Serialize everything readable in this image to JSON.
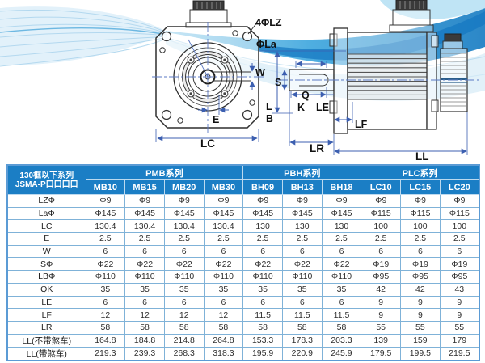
{
  "diagram": {
    "front": {
      "lz": "4ΦLZ",
      "la": "ΦLa",
      "w": "W",
      "e": "E",
      "lc": "LC"
    },
    "side": {
      "s": "S",
      "q": "Q",
      "k": "K",
      "le": "LE",
      "l": "L",
      "b": "B",
      "lf": "LF",
      "lr": "LR",
      "ll": "LL"
    }
  },
  "table": {
    "corner": {
      "line1": "130框以下系列",
      "line2": "JSMA-P口口口口"
    },
    "groups": [
      {
        "label": "PMB系列",
        "models": [
          "MB10",
          "MB15",
          "MB20",
          "MB30"
        ]
      },
      {
        "label": "PBH系列",
        "models": [
          "BH09",
          "BH13",
          "BH18"
        ]
      },
      {
        "label": "PLC系列",
        "models": [
          "LC10",
          "LC15",
          "LC20"
        ]
      }
    ],
    "rows": [
      {
        "label": "LZΦ",
        "values": [
          "Φ9",
          "Φ9",
          "Φ9",
          "Φ9",
          "Φ9",
          "Φ9",
          "Φ9",
          "Φ9",
          "Φ9",
          "Φ9"
        ]
      },
      {
        "label": "LaΦ",
        "values": [
          "Φ145",
          "Φ145",
          "Φ145",
          "Φ145",
          "Φ145",
          "Φ145",
          "Φ145",
          "Φ115",
          "Φ115",
          "Φ115"
        ]
      },
      {
        "label": "LC",
        "values": [
          "130.4",
          "130.4",
          "130.4",
          "130.4",
          "130",
          "130",
          "130",
          "100",
          "100",
          "100"
        ]
      },
      {
        "label": "E",
        "values": [
          "2.5",
          "2.5",
          "2.5",
          "2.5",
          "2.5",
          "2.5",
          "2.5",
          "2.5",
          "2.5",
          "2.5"
        ]
      },
      {
        "label": "W",
        "values": [
          "6",
          "6",
          "6",
          "6",
          "6",
          "6",
          "6",
          "6",
          "6",
          "6"
        ]
      },
      {
        "label": "SΦ",
        "values": [
          "Φ22",
          "Φ22",
          "Φ22",
          "Φ22",
          "Φ22",
          "Φ22",
          "Φ22",
          "Φ19",
          "Φ19",
          "Φ19"
        ]
      },
      {
        "label": "LBΦ",
        "values": [
          "Φ110",
          "Φ110",
          "Φ110",
          "Φ110",
          "Φ110",
          "Φ110",
          "Φ110",
          "Φ95",
          "Φ95",
          "Φ95"
        ]
      },
      {
        "label": "QK",
        "values": [
          "35",
          "35",
          "35",
          "35",
          "35",
          "35",
          "35",
          "42",
          "42",
          "43"
        ]
      },
      {
        "label": "LE",
        "values": [
          "6",
          "6",
          "6",
          "6",
          "6",
          "6",
          "6",
          "9",
          "9",
          "9"
        ]
      },
      {
        "label": "LF",
        "values": [
          "12",
          "12",
          "12",
          "12",
          "11.5",
          "11.5",
          "11.5",
          "9",
          "9",
          "9"
        ]
      },
      {
        "label": "LR",
        "values": [
          "58",
          "58",
          "58",
          "58",
          "58",
          "58",
          "58",
          "55",
          "55",
          "55"
        ]
      },
      {
        "label": "LL(不带煞车)",
        "values": [
          "164.8",
          "184.8",
          "214.8",
          "264.8",
          "153.3",
          "178.3",
          "203.3",
          "139",
          "159",
          "179"
        ]
      },
      {
        "label": "LL(带煞车)",
        "values": [
          "219.3",
          "239.3",
          "268.3",
          "318.3",
          "195.9",
          "220.9",
          "245.9",
          "179.5",
          "199.5",
          "219.5"
        ]
      }
    ]
  },
  "colors": {
    "header_blue": "#1b7ec5",
    "border_blue": "#7fb2d8",
    "dim_blue": "#3c5fb0",
    "wave_deep": "#1578c2",
    "wave_cyan": "#37a3dc"
  }
}
